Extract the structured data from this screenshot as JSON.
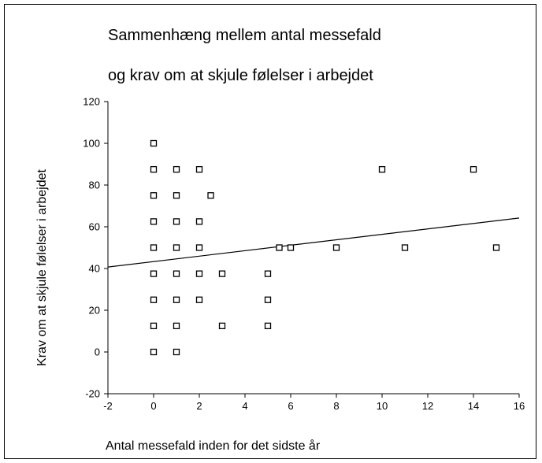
{
  "chart_data": {
    "type": "scatter",
    "title": [
      "Sammenhæng mellem antal messefald",
      "og krav om at skjule følelser i arbejdet"
    ],
    "xlabel": "Antal messefald inden for det sidste år",
    "ylabel": "Krav om at skjule følelser i arbejdet",
    "xlim": [
      -2,
      16
    ],
    "ylim": [
      -20,
      120
    ],
    "xticks": [
      "-2",
      "0",
      "2",
      "4",
      "6",
      "8",
      "10",
      "12",
      "14",
      "16"
    ],
    "yticks": [
      "-20",
      "0",
      "20",
      "40",
      "60",
      "80",
      "100",
      "120"
    ],
    "grid": false,
    "marker": "hollow-square",
    "points": [
      {
        "x": 0,
        "y": 100
      },
      {
        "x": 0,
        "y": 87.5
      },
      {
        "x": 1,
        "y": 87.5
      },
      {
        "x": 2,
        "y": 87.5
      },
      {
        "x": 10,
        "y": 87.5
      },
      {
        "x": 14,
        "y": 87.5
      },
      {
        "x": 0,
        "y": 75
      },
      {
        "x": 1,
        "y": 75
      },
      {
        "x": 2.5,
        "y": 75
      },
      {
        "x": 0,
        "y": 62.5
      },
      {
        "x": 1,
        "y": 62.5
      },
      {
        "x": 2,
        "y": 62.5
      },
      {
        "x": 0,
        "y": 50
      },
      {
        "x": 1,
        "y": 50
      },
      {
        "x": 2,
        "y": 50
      },
      {
        "x": 5.5,
        "y": 50
      },
      {
        "x": 6,
        "y": 50
      },
      {
        "x": 8,
        "y": 50
      },
      {
        "x": 11,
        "y": 50
      },
      {
        "x": 15,
        "y": 50
      },
      {
        "x": 0,
        "y": 37.5
      },
      {
        "x": 1,
        "y": 37.5
      },
      {
        "x": 2,
        "y": 37.5
      },
      {
        "x": 3,
        "y": 37.5
      },
      {
        "x": 5,
        "y": 37.5
      },
      {
        "x": 0,
        "y": 25
      },
      {
        "x": 1,
        "y": 25
      },
      {
        "x": 2,
        "y": 25
      },
      {
        "x": 5,
        "y": 25
      },
      {
        "x": 0,
        "y": 12.5
      },
      {
        "x": 1,
        "y": 12.5
      },
      {
        "x": 3,
        "y": 12.5
      },
      {
        "x": 5,
        "y": 12.5
      },
      {
        "x": 0,
        "y": 0
      },
      {
        "x": 1,
        "y": 0
      }
    ],
    "trendline": {
      "x": [
        -2,
        16
      ],
      "y": [
        40.7,
        64.2
      ]
    }
  }
}
